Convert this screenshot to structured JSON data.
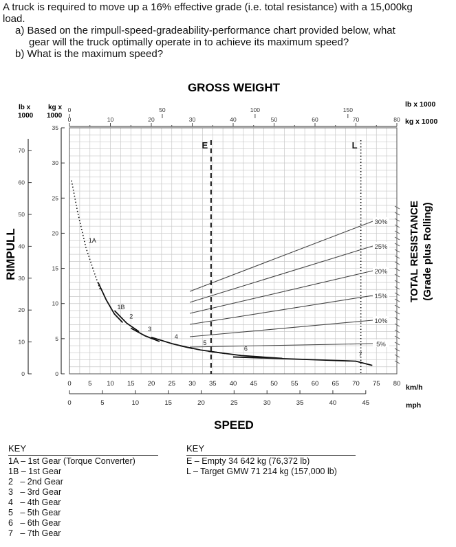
{
  "question": {
    "line1": "A truck is required to move up a 16% effective grade (i.e. total resistance) with a 15,000kg",
    "line2": "load.",
    "a1": "a)  Based on the rimpull-speed-gradeability-performance chart provided below, what",
    "a2": "gear will the truck optimally operate in to achieve its maximum speed?",
    "b": "b)  What is the maximum speed?"
  },
  "chart_data": {
    "type": "line",
    "title": "GROSS WEIGHT",
    "xlabel": "SPEED",
    "ylabel": "RIMPULL",
    "right_label_1": "TOTAL RESISTANCE",
    "right_label_2": "(Grade plus Rolling)",
    "top_unit_lb": "lb x 1000",
    "top_unit_kg": "kg x 1000",
    "left_unit_lb_1": "lb x",
    "left_unit_lb_2": "1000",
    "left_unit_kg_1": "kg x",
    "left_unit_kg_2": "1000",
    "x_unit_kmh": "km/h",
    "x_unit_mph": "mph",
    "xlim_kmh": [
      0,
      80
    ],
    "ylim_kg": [
      0,
      35
    ],
    "x_ticks_kmh": [
      "0",
      "5",
      "10",
      "15",
      "20",
      "25",
      "30",
      "35",
      "40",
      "45",
      "50",
      "55",
      "60",
      "65",
      "70",
      "75",
      "80"
    ],
    "x_ticks_mph": [
      "0",
      "5",
      "10",
      "15",
      "20",
      "25",
      "30",
      "35",
      "40",
      "45"
    ],
    "y_ticks_kg": [
      "0",
      "5",
      "10",
      "15",
      "20",
      "25",
      "30",
      "35"
    ],
    "y_ticks_lb": [
      "0",
      "10",
      "20",
      "30",
      "40",
      "50",
      "60",
      "70"
    ],
    "top_ticks_kg": [
      "0",
      "10",
      "20",
      "30",
      "40",
      "50",
      "60",
      "70",
      "80"
    ],
    "top_ticks_lb": [
      "0",
      "50",
      "100",
      "150"
    ],
    "gross_weight_markers": [
      {
        "label": "E",
        "gross_weight_kg": 34.6
      },
      {
        "label": "L",
        "gross_weight_kg": 71.2
      }
    ],
    "resistance_lines": [
      "5%",
      "10%",
      "15%",
      "20%",
      "25%",
      "30%"
    ],
    "gear_labels": [
      "1A",
      "1B",
      "2",
      "3",
      "4",
      "5",
      "6",
      "7"
    ],
    "gears": [
      {
        "name": "1A",
        "points": [
          [
            0.5,
            27.5
          ],
          [
            2,
            23
          ],
          [
            4,
            18
          ],
          [
            6,
            14.5
          ],
          [
            7.5,
            12
          ]
        ]
      },
      {
        "name": "1B",
        "points": [
          [
            7,
            13
          ],
          [
            9,
            10.5
          ],
          [
            11,
            8.5
          ],
          [
            13,
            7.3
          ]
        ]
      },
      {
        "name": "2",
        "points": [
          [
            11,
            9
          ],
          [
            14,
            7.2
          ],
          [
            17,
            6
          ]
        ]
      },
      {
        "name": "3",
        "points": [
          [
            15,
            6.5
          ],
          [
            18.5,
            5.4
          ],
          [
            22,
            4.6
          ]
        ]
      },
      {
        "name": "4",
        "points": [
          [
            20,
            5.2
          ],
          [
            25,
            4.3
          ],
          [
            30,
            3.6
          ]
        ]
      },
      {
        "name": "5",
        "points": [
          [
            27,
            4
          ],
          [
            32,
            3.4
          ],
          [
            38,
            2.9
          ]
        ]
      },
      {
        "name": "6",
        "points": [
          [
            34,
            3.2
          ],
          [
            42,
            2.6
          ],
          [
            52,
            2.2
          ]
        ]
      },
      {
        "name": "7",
        "points": [
          [
            40,
            2.4
          ],
          [
            55,
            2.1
          ],
          [
            70,
            1.8
          ],
          [
            74,
            1.2
          ]
        ]
      }
    ]
  },
  "key_gears": {
    "title": "KEY",
    "items": [
      "1A – 1st Gear (Torque Converter)",
      "1B – 1st Gear",
      "2   – 2nd Gear",
      "3   – 3rd Gear",
      "4   – 4th Gear",
      "5   – 5th Gear",
      "6   – 6th Gear",
      "7   – 7th Gear"
    ]
  },
  "key_weights": {
    "title": "KEY",
    "items": [
      "E – Empty 34 642 kg (76,372 lb)",
      "L – Target GMW 71 214 kg (157,000 lb)"
    ]
  }
}
